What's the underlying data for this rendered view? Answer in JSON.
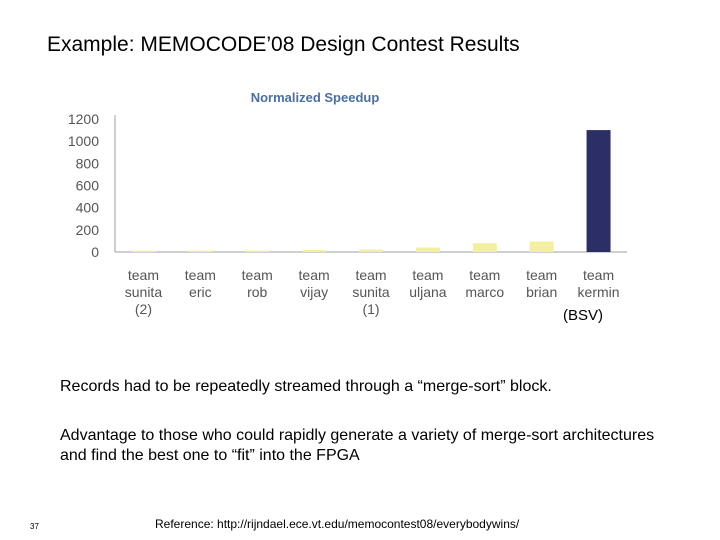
{
  "slide": {
    "title": "Example: MEMOCODE’08 Design Contest Results",
    "annotation": "(BSV)",
    "note1": "Records had to be repeatedly streamed through a “merge-sort” block.",
    "note2": "Advantage to those who could rapidly generate a variety  of merge-sort architectures and find the best one to “fit” into the FPGA",
    "page_number": "37",
    "reference": "Reference:  http://rijndael.ece.vt.edu/memocontest08/everybodywins/"
  },
  "chart_data": {
    "type": "bar",
    "title": "Normalized Speedup",
    "categories": [
      "team sunita (2)",
      "team eric",
      "team rob",
      "team vijay",
      "team sunita (1)",
      "team uljana",
      "team marco",
      "team brian",
      "team kermin"
    ],
    "category_lines": [
      [
        "team",
        "sunita",
        "(2)"
      ],
      [
        "team",
        "eric"
      ],
      [
        "team",
        "rob"
      ],
      [
        "team",
        "vijay"
      ],
      [
        "team",
        "sunita",
        "(1)"
      ],
      [
        "team",
        "uljana"
      ],
      [
        "team",
        "marco"
      ],
      [
        "team",
        "brian"
      ],
      [
        "team",
        "kermin"
      ]
    ],
    "values": [
      5,
      8,
      12,
      18,
      22,
      40,
      80,
      95,
      1100
    ],
    "ylim": [
      0,
      1200
    ],
    "yticks": [
      0,
      200,
      400,
      600,
      800,
      1000,
      1200
    ],
    "grid": false,
    "colors": {
      "bar_default": "#f2f0a0",
      "bar_highlight": "#2b2f66",
      "axis": "#9aa0a6",
      "title": "#4a6fa5"
    },
    "highlight_index": 8
  }
}
